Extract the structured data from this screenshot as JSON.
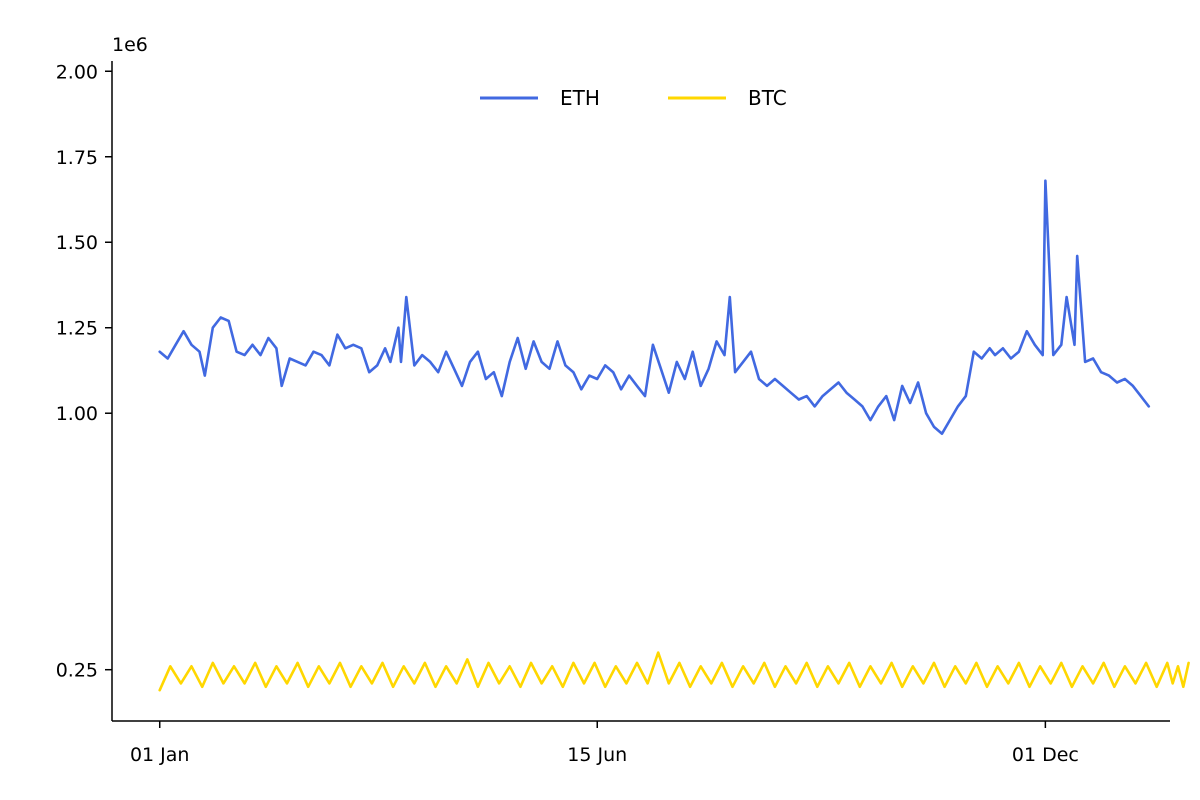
{
  "chart_data": {
    "type": "line",
    "title": "",
    "xlabel": "",
    "ylabel": "",
    "x_ticks": [
      {
        "day": 0,
        "label": "01 Jan"
      },
      {
        "day": 165,
        "label": "15 Jun"
      },
      {
        "day": 334,
        "label": "01 Dec"
      }
    ],
    "y_ticks": [
      {
        "value": 0.25,
        "label": "0.25"
      },
      {
        "value": 1.0,
        "label": "1.00"
      },
      {
        "value": 1.25,
        "label": "1.25"
      },
      {
        "value": 1.5,
        "label": "1.50"
      },
      {
        "value": 1.75,
        "label": "1.75"
      },
      {
        "value": 2.0,
        "label": "2.00"
      }
    ],
    "y_offset_label": "1e6",
    "xlim": [
      -18,
      381
    ],
    "ylim": [
      0.1,
      2.03
    ],
    "grid": false,
    "legend": {
      "position": "top-center",
      "columns": 2
    },
    "series": [
      {
        "name": "ETH",
        "color": "#4169E1",
        "points": [
          [
            0,
            1.18
          ],
          [
            3,
            1.16
          ],
          [
            6,
            1.2
          ],
          [
            9,
            1.24
          ],
          [
            12,
            1.2
          ],
          [
            15,
            1.18
          ],
          [
            17,
            1.11
          ],
          [
            20,
            1.25
          ],
          [
            23,
            1.28
          ],
          [
            26,
            1.27
          ],
          [
            29,
            1.18
          ],
          [
            32,
            1.17
          ],
          [
            35,
            1.2
          ],
          [
            38,
            1.17
          ],
          [
            41,
            1.22
          ],
          [
            44,
            1.19
          ],
          [
            46,
            1.08
          ],
          [
            49,
            1.16
          ],
          [
            52,
            1.15
          ],
          [
            55,
            1.14
          ],
          [
            58,
            1.18
          ],
          [
            61,
            1.17
          ],
          [
            64,
            1.14
          ],
          [
            67,
            1.23
          ],
          [
            70,
            1.19
          ],
          [
            73,
            1.2
          ],
          [
            76,
            1.19
          ],
          [
            79,
            1.12
          ],
          [
            82,
            1.14
          ],
          [
            85,
            1.19
          ],
          [
            87,
            1.15
          ],
          [
            90,
            1.25
          ],
          [
            91,
            1.15
          ],
          [
            93,
            1.34
          ],
          [
            96,
            1.14
          ],
          [
            99,
            1.17
          ],
          [
            102,
            1.15
          ],
          [
            105,
            1.12
          ],
          [
            108,
            1.18
          ],
          [
            111,
            1.13
          ],
          [
            114,
            1.08
          ],
          [
            117,
            1.15
          ],
          [
            120,
            1.18
          ],
          [
            123,
            1.1
          ],
          [
            126,
            1.12
          ],
          [
            129,
            1.05
          ],
          [
            132,
            1.15
          ],
          [
            135,
            1.22
          ],
          [
            138,
            1.13
          ],
          [
            141,
            1.21
          ],
          [
            144,
            1.15
          ],
          [
            147,
            1.13
          ],
          [
            150,
            1.21
          ],
          [
            153,
            1.14
          ],
          [
            156,
            1.12
          ],
          [
            159,
            1.07
          ],
          [
            162,
            1.11
          ],
          [
            165,
            1.1
          ],
          [
            168,
            1.14
          ],
          [
            171,
            1.12
          ],
          [
            174,
            1.07
          ],
          [
            177,
            1.11
          ],
          [
            180,
            1.08
          ],
          [
            183,
            1.05
          ],
          [
            186,
            1.2
          ],
          [
            189,
            1.13
          ],
          [
            192,
            1.06
          ],
          [
            195,
            1.15
          ],
          [
            198,
            1.1
          ],
          [
            201,
            1.18
          ],
          [
            204,
            1.08
          ],
          [
            207,
            1.13
          ],
          [
            210,
            1.21
          ],
          [
            213,
            1.17
          ],
          [
            215,
            1.34
          ],
          [
            217,
            1.12
          ],
          [
            220,
            1.15
          ],
          [
            223,
            1.18
          ],
          [
            226,
            1.1
          ],
          [
            229,
            1.08
          ],
          [
            232,
            1.1
          ],
          [
            235,
            1.08
          ],
          [
            238,
            1.06
          ],
          [
            241,
            1.04
          ],
          [
            244,
            1.05
          ],
          [
            247,
            1.02
          ],
          [
            250,
            1.05
          ],
          [
            253,
            1.07
          ],
          [
            256,
            1.09
          ],
          [
            259,
            1.06
          ],
          [
            262,
            1.04
          ],
          [
            265,
            1.02
          ],
          [
            268,
            0.98
          ],
          [
            271,
            1.02
          ],
          [
            274,
            1.05
          ],
          [
            277,
            0.98
          ],
          [
            280,
            1.08
          ],
          [
            283,
            1.03
          ],
          [
            286,
            1.09
          ],
          [
            289,
            1.0
          ],
          [
            292,
            0.96
          ],
          [
            295,
            0.94
          ],
          [
            298,
            0.98
          ],
          [
            301,
            1.02
          ],
          [
            304,
            1.05
          ],
          [
            307,
            1.18
          ],
          [
            310,
            1.16
          ],
          [
            313,
            1.19
          ],
          [
            315,
            1.17
          ],
          [
            318,
            1.19
          ],
          [
            321,
            1.16
          ],
          [
            324,
            1.18
          ],
          [
            327,
            1.24
          ],
          [
            330,
            1.2
          ],
          [
            333,
            1.17
          ],
          [
            334,
            1.68
          ],
          [
            337,
            1.17
          ],
          [
            340,
            1.2
          ],
          [
            342,
            1.34
          ],
          [
            345,
            1.2
          ],
          [
            346,
            1.46
          ],
          [
            349,
            1.15
          ],
          [
            352,
            1.16
          ],
          [
            355,
            1.12
          ],
          [
            358,
            1.11
          ],
          [
            361,
            1.09
          ],
          [
            364,
            1.1
          ],
          [
            367,
            1.08
          ],
          [
            370,
            1.05
          ],
          [
            373,
            1.02
          ]
        ]
      },
      {
        "name": "BTC",
        "color": "#FFD700",
        "points": [
          [
            0,
            0.19
          ],
          [
            4,
            0.26
          ],
          [
            8,
            0.21
          ],
          [
            12,
            0.26
          ],
          [
            16,
            0.2
          ],
          [
            20,
            0.27
          ],
          [
            24,
            0.21
          ],
          [
            28,
            0.26
          ],
          [
            32,
            0.21
          ],
          [
            36,
            0.27
          ],
          [
            40,
            0.2
          ],
          [
            44,
            0.26
          ],
          [
            48,
            0.21
          ],
          [
            52,
            0.27
          ],
          [
            56,
            0.2
          ],
          [
            60,
            0.26
          ],
          [
            64,
            0.21
          ],
          [
            68,
            0.27
          ],
          [
            72,
            0.2
          ],
          [
            76,
            0.26
          ],
          [
            80,
            0.21
          ],
          [
            84,
            0.27
          ],
          [
            88,
            0.2
          ],
          [
            92,
            0.26
          ],
          [
            96,
            0.21
          ],
          [
            100,
            0.27
          ],
          [
            104,
            0.2
          ],
          [
            108,
            0.26
          ],
          [
            112,
            0.21
          ],
          [
            116,
            0.28
          ],
          [
            120,
            0.2
          ],
          [
            124,
            0.27
          ],
          [
            128,
            0.21
          ],
          [
            132,
            0.26
          ],
          [
            136,
            0.2
          ],
          [
            140,
            0.27
          ],
          [
            144,
            0.21
          ],
          [
            148,
            0.26
          ],
          [
            152,
            0.2
          ],
          [
            156,
            0.27
          ],
          [
            160,
            0.21
          ],
          [
            164,
            0.27
          ],
          [
            168,
            0.2
          ],
          [
            172,
            0.26
          ],
          [
            176,
            0.21
          ],
          [
            180,
            0.27
          ],
          [
            184,
            0.21
          ],
          [
            188,
            0.3
          ],
          [
            192,
            0.21
          ],
          [
            196,
            0.27
          ],
          [
            200,
            0.2
          ],
          [
            204,
            0.26
          ],
          [
            208,
            0.21
          ],
          [
            212,
            0.27
          ],
          [
            216,
            0.2
          ],
          [
            220,
            0.26
          ],
          [
            224,
            0.21
          ],
          [
            228,
            0.27
          ],
          [
            232,
            0.2
          ],
          [
            236,
            0.26
          ],
          [
            240,
            0.21
          ],
          [
            244,
            0.27
          ],
          [
            248,
            0.2
          ],
          [
            252,
            0.26
          ],
          [
            256,
            0.21
          ],
          [
            260,
            0.27
          ],
          [
            264,
            0.2
          ],
          [
            268,
            0.26
          ],
          [
            272,
            0.21
          ],
          [
            276,
            0.27
          ],
          [
            280,
            0.2
          ],
          [
            284,
            0.26
          ],
          [
            288,
            0.21
          ],
          [
            292,
            0.27
          ],
          [
            296,
            0.2
          ],
          [
            300,
            0.26
          ],
          [
            304,
            0.21
          ],
          [
            308,
            0.27
          ],
          [
            312,
            0.2
          ],
          [
            316,
            0.26
          ],
          [
            320,
            0.21
          ],
          [
            324,
            0.27
          ],
          [
            328,
            0.2
          ],
          [
            332,
            0.26
          ],
          [
            336,
            0.21
          ],
          [
            340,
            0.27
          ],
          [
            344,
            0.2
          ],
          [
            348,
            0.26
          ],
          [
            352,
            0.21
          ],
          [
            356,
            0.27
          ],
          [
            360,
            0.2
          ],
          [
            364,
            0.26
          ],
          [
            368,
            0.21
          ],
          [
            372,
            0.27
          ],
          [
            376,
            0.2
          ],
          [
            380,
            0.27
          ],
          [
            382,
            0.21
          ],
          [
            384,
            0.26
          ],
          [
            386,
            0.2
          ],
          [
            388,
            0.27
          ]
        ]
      }
    ]
  }
}
